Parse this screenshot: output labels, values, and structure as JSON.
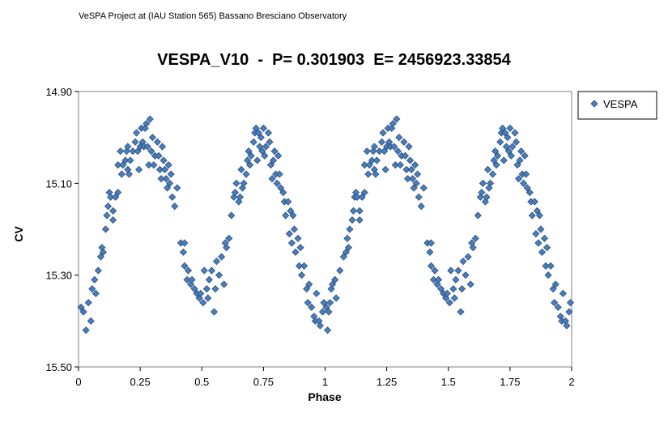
{
  "header_note": "VeSPA Project at (IAU Station 565) Bassano Bresciano Observatory",
  "chart_data": {
    "type": "scatter",
    "title": "VESPA_V10  -  P= 0.301903  E= 2456923.33854",
    "xlabel": "Phase",
    "ylabel": "CV",
    "xlim": [
      0,
      2
    ],
    "ylim": [
      15.5,
      14.9
    ],
    "y_reversed": true,
    "x_ticks": [
      "0",
      "0.25",
      "0.5",
      "0.75",
      "1",
      "1.25",
      "1.5",
      "1.75",
      "2"
    ],
    "y_ticks": [
      "14.90",
      "15.10",
      "15.30",
      "15.50"
    ],
    "legend": "right",
    "series": [
      {
        "name": "VESPA",
        "color": "#4a7ebb",
        "points": [
          [
            0.01,
            15.37
          ],
          [
            0.02,
            15.38
          ],
          [
            0.03,
            15.42
          ],
          [
            0.04,
            15.36
          ],
          [
            0.05,
            15.4
          ],
          [
            0.055,
            15.33
          ],
          [
            0.065,
            15.31
          ],
          [
            0.07,
            15.34
          ],
          [
            0.08,
            15.29
          ],
          [
            0.09,
            15.26
          ],
          [
            0.095,
            15.24
          ],
          [
            0.1,
            15.25
          ],
          [
            0.11,
            15.2
          ],
          [
            0.115,
            15.17
          ],
          [
            0.12,
            15.15
          ],
          [
            0.125,
            15.12
          ],
          [
            0.13,
            15.13
          ],
          [
            0.14,
            15.16
          ],
          [
            0.14,
            15.18
          ],
          [
            0.15,
            15.13
          ],
          [
            0.16,
            15.06
          ],
          [
            0.16,
            15.12
          ],
          [
            0.17,
            15.03
          ],
          [
            0.175,
            15.08
          ],
          [
            0.18,
            15.06
          ],
          [
            0.19,
            15.05
          ],
          [
            0.195,
            15.03
          ],
          [
            0.2,
            15.02
          ],
          [
            0.2,
            15.07
          ],
          [
            0.205,
            15.08
          ],
          [
            0.21,
            15.05
          ],
          [
            0.22,
            15.03
          ],
          [
            0.23,
            15.01
          ],
          [
            0.235,
            14.99
          ],
          [
            0.24,
            15.03
          ],
          [
            0.245,
            15.07
          ],
          [
            0.25,
            15.02
          ],
          [
            0.255,
            14.98
          ],
          [
            0.26,
            15.01
          ],
          [
            0.265,
            15.02
          ],
          [
            0.27,
            14.98
          ],
          [
            0.275,
            14.97
          ],
          [
            0.28,
            15.02
          ],
          [
            0.285,
            15.06
          ],
          [
            0.29,
            14.96
          ],
          [
            0.295,
            15.03
          ],
          [
            0.3,
            15.0
          ],
          [
            0.305,
            15.06
          ],
          [
            0.31,
            15.04
          ],
          [
            0.32,
            15.01
          ],
          [
            0.325,
            15.04
          ],
          [
            0.33,
            15.07
          ],
          [
            0.335,
            15.09
          ],
          [
            0.34,
            15.02
          ],
          [
            0.345,
            15.05
          ],
          [
            0.35,
            15.07
          ],
          [
            0.355,
            15.09
          ],
          [
            0.36,
            15.11
          ],
          [
            0.365,
            15.06
          ],
          [
            0.37,
            15.1
          ],
          [
            0.375,
            15.08
          ],
          [
            0.38,
            15.13
          ],
          [
            0.39,
            15.15
          ],
          [
            0.4,
            15.11
          ],
          [
            0.415,
            15.23
          ],
          [
            0.425,
            15.25
          ],
          [
            0.43,
            15.23
          ],
          [
            0.43,
            15.28
          ],
          [
            0.44,
            15.31
          ],
          [
            0.445,
            15.29
          ],
          [
            0.455,
            15.32
          ],
          [
            0.46,
            15.31
          ],
          [
            0.47,
            15.33
          ],
          [
            0.48,
            15.34
          ],
          [
            0.49,
            15.35
          ],
          [
            0.495,
            15.34
          ],
          [
            0.505,
            15.36
          ],
          [
            0.51,
            15.29
          ],
          [
            0.52,
            15.33
          ],
          [
            0.525,
            15.35
          ],
          [
            0.53,
            15.31
          ],
          [
            0.54,
            15.29
          ],
          [
            0.55,
            15.38
          ],
          [
            0.555,
            15.33
          ],
          [
            0.56,
            15.27
          ],
          [
            0.57,
            15.3
          ],
          [
            0.58,
            15.26
          ],
          [
            0.59,
            15.32
          ],
          [
            0.595,
            15.23
          ],
          [
            0.6,
            15.24
          ],
          [
            0.61,
            15.22
          ],
          [
            0.62,
            15.17
          ],
          [
            0.63,
            15.13
          ],
          [
            0.635,
            15.12
          ],
          [
            0.64,
            15.1
          ],
          [
            0.65,
            15.14
          ],
          [
            0.655,
            15.13
          ],
          [
            0.66,
            15.07
          ],
          [
            0.665,
            15.11
          ],
          [
            0.67,
            15.1
          ],
          [
            0.68,
            15.08
          ],
          [
            0.685,
            15.05
          ],
          [
            0.69,
            15.03
          ],
          [
            0.695,
            15.06
          ],
          [
            0.7,
            15.04
          ],
          [
            0.71,
            15.01
          ],
          [
            0.715,
            14.99
          ],
          [
            0.72,
            14.98
          ],
          [
            0.725,
            15.05
          ],
          [
            0.73,
            14.99
          ],
          [
            0.735,
            15.02
          ],
          [
            0.74,
            15.0
          ],
          [
            0.745,
            15.03
          ],
          [
            0.75,
            14.98
          ],
          [
            0.755,
            15.04
          ],
          [
            0.76,
            15.02
          ],
          [
            0.77,
            14.99
          ],
          [
            0.775,
            15.01
          ],
          [
            0.78,
            15.06
          ],
          [
            0.785,
            15.09
          ],
          [
            0.79,
            15.05
          ],
          [
            0.795,
            15.03
          ],
          [
            0.8,
            15.08
          ],
          [
            0.805,
            15.1
          ],
          [
            0.81,
            15.04
          ],
          [
            0.815,
            15.08
          ],
          [
            0.82,
            15.11
          ],
          [
            0.83,
            15.12
          ],
          [
            0.835,
            15.14
          ],
          [
            0.84,
            15.17
          ],
          [
            0.85,
            15.14
          ],
          [
            0.855,
            15.21
          ],
          [
            0.86,
            15.16
          ],
          [
            0.865,
            15.23
          ],
          [
            0.87,
            15.17
          ],
          [
            0.875,
            15.2
          ],
          [
            0.88,
            15.25
          ],
          [
            0.89,
            15.22
          ],
          [
            0.895,
            15.28
          ],
          [
            0.9,
            15.24
          ],
          [
            0.905,
            15.3
          ],
          [
            0.915,
            15.28
          ],
          [
            0.925,
            15.33
          ],
          [
            0.93,
            15.36
          ],
          [
            0.935,
            15.32
          ],
          [
            0.945,
            15.37
          ],
          [
            0.955,
            15.39
          ],
          [
            0.96,
            15.4
          ],
          [
            0.965,
            15.34
          ],
          [
            0.975,
            15.4
          ],
          [
            0.98,
            15.41
          ],
          [
            0.99,
            15.38
          ],
          [
            0.995,
            15.36
          ],
          [
            1.005,
            15.37
          ],
          [
            1.01,
            15.42
          ],
          [
            1.015,
            15.38
          ],
          [
            1.02,
            15.36
          ],
          [
            1.025,
            15.33
          ],
          [
            1.03,
            15.32
          ],
          [
            1.04,
            15.31
          ],
          [
            1.045,
            15.35
          ],
          [
            1.06,
            15.29
          ],
          [
            1.075,
            15.26
          ],
          [
            1.085,
            15.25
          ],
          [
            1.09,
            15.22
          ],
          [
            1.095,
            15.24
          ],
          [
            1.1,
            15.2
          ],
          [
            1.11,
            15.18
          ],
          [
            1.115,
            15.16
          ],
          [
            1.12,
            15.13
          ],
          [
            1.125,
            15.12
          ],
          [
            1.13,
            15.13
          ],
          [
            1.14,
            15.16
          ],
          [
            1.14,
            15.18
          ],
          [
            1.15,
            15.13
          ],
          [
            1.16,
            15.06
          ],
          [
            1.16,
            15.12
          ],
          [
            1.17,
            15.03
          ],
          [
            1.175,
            15.08
          ],
          [
            1.18,
            15.06
          ],
          [
            1.19,
            15.05
          ],
          [
            1.195,
            15.03
          ],
          [
            1.2,
            15.02
          ],
          [
            1.2,
            15.07
          ],
          [
            1.205,
            15.08
          ],
          [
            1.21,
            15.05
          ],
          [
            1.22,
            15.03
          ],
          [
            1.23,
            15.01
          ],
          [
            1.235,
            14.99
          ],
          [
            1.24,
            15.03
          ],
          [
            1.245,
            15.07
          ],
          [
            1.25,
            15.02
          ],
          [
            1.255,
            14.98
          ],
          [
            1.26,
            15.01
          ],
          [
            1.265,
            15.02
          ],
          [
            1.27,
            14.98
          ],
          [
            1.275,
            14.97
          ],
          [
            1.28,
            15.02
          ],
          [
            1.285,
            15.06
          ],
          [
            1.29,
            14.96
          ],
          [
            1.295,
            15.03
          ],
          [
            1.3,
            15.0
          ],
          [
            1.305,
            15.06
          ],
          [
            1.31,
            15.04
          ],
          [
            1.32,
            15.01
          ],
          [
            1.325,
            15.04
          ],
          [
            1.33,
            15.07
          ],
          [
            1.335,
            15.09
          ],
          [
            1.34,
            15.02
          ],
          [
            1.345,
            15.05
          ],
          [
            1.35,
            15.07
          ],
          [
            1.355,
            15.09
          ],
          [
            1.36,
            15.11
          ],
          [
            1.365,
            15.06
          ],
          [
            1.37,
            15.1
          ],
          [
            1.375,
            15.08
          ],
          [
            1.38,
            15.13
          ],
          [
            1.39,
            15.15
          ],
          [
            1.4,
            15.11
          ],
          [
            1.415,
            15.23
          ],
          [
            1.425,
            15.25
          ],
          [
            1.43,
            15.23
          ],
          [
            1.43,
            15.28
          ],
          [
            1.44,
            15.31
          ],
          [
            1.445,
            15.29
          ],
          [
            1.455,
            15.32
          ],
          [
            1.46,
            15.31
          ],
          [
            1.47,
            15.33
          ],
          [
            1.48,
            15.34
          ],
          [
            1.49,
            15.35
          ],
          [
            1.495,
            15.34
          ],
          [
            1.505,
            15.36
          ],
          [
            1.51,
            15.29
          ],
          [
            1.52,
            15.33
          ],
          [
            1.525,
            15.35
          ],
          [
            1.53,
            15.31
          ],
          [
            1.54,
            15.29
          ],
          [
            1.55,
            15.38
          ],
          [
            1.555,
            15.33
          ],
          [
            1.56,
            15.27
          ],
          [
            1.57,
            15.3
          ],
          [
            1.58,
            15.26
          ],
          [
            1.59,
            15.32
          ],
          [
            1.595,
            15.23
          ],
          [
            1.6,
            15.24
          ],
          [
            1.61,
            15.22
          ],
          [
            1.62,
            15.17
          ],
          [
            1.63,
            15.13
          ],
          [
            1.635,
            15.12
          ],
          [
            1.64,
            15.1
          ],
          [
            1.65,
            15.14
          ],
          [
            1.655,
            15.13
          ],
          [
            1.66,
            15.07
          ],
          [
            1.665,
            15.11
          ],
          [
            1.67,
            15.1
          ],
          [
            1.68,
            15.08
          ],
          [
            1.685,
            15.05
          ],
          [
            1.69,
            15.03
          ],
          [
            1.695,
            15.06
          ],
          [
            1.7,
            15.04
          ],
          [
            1.71,
            15.01
          ],
          [
            1.715,
            14.99
          ],
          [
            1.72,
            14.98
          ],
          [
            1.725,
            15.05
          ],
          [
            1.73,
            14.99
          ],
          [
            1.735,
            15.02
          ],
          [
            1.74,
            15.0
          ],
          [
            1.745,
            15.03
          ],
          [
            1.75,
            14.98
          ],
          [
            1.755,
            15.04
          ],
          [
            1.76,
            15.02
          ],
          [
            1.77,
            14.99
          ],
          [
            1.775,
            15.01
          ],
          [
            1.78,
            15.06
          ],
          [
            1.785,
            15.09
          ],
          [
            1.79,
            15.05
          ],
          [
            1.795,
            15.03
          ],
          [
            1.8,
            15.08
          ],
          [
            1.805,
            15.1
          ],
          [
            1.81,
            15.04
          ],
          [
            1.815,
            15.08
          ],
          [
            1.82,
            15.11
          ],
          [
            1.83,
            15.12
          ],
          [
            1.835,
            15.14
          ],
          [
            1.84,
            15.17
          ],
          [
            1.85,
            15.14
          ],
          [
            1.855,
            15.21
          ],
          [
            1.86,
            15.16
          ],
          [
            1.865,
            15.23
          ],
          [
            1.87,
            15.17
          ],
          [
            1.875,
            15.2
          ],
          [
            1.88,
            15.25
          ],
          [
            1.89,
            15.22
          ],
          [
            1.895,
            15.28
          ],
          [
            1.9,
            15.24
          ],
          [
            1.905,
            15.3
          ],
          [
            1.915,
            15.28
          ],
          [
            1.925,
            15.33
          ],
          [
            1.93,
            15.36
          ],
          [
            1.935,
            15.32
          ],
          [
            1.945,
            15.37
          ],
          [
            1.955,
            15.39
          ],
          [
            1.96,
            15.4
          ],
          [
            1.965,
            15.34
          ],
          [
            1.975,
            15.4
          ],
          [
            1.98,
            15.41
          ],
          [
            1.99,
            15.38
          ],
          [
            1.995,
            15.36
          ]
        ]
      }
    ]
  }
}
